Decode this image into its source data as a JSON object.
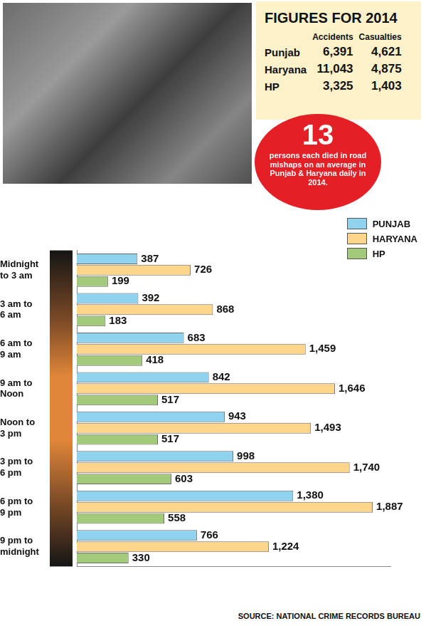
{
  "chart_data": {
    "type": "bar",
    "orientation": "horizontal",
    "categories": [
      "Midnight to 3 am",
      "3 am to 6 am",
      "6 am to 9 am",
      "9 am to Noon",
      "Noon to 3 pm",
      "3 pm to 6 pm",
      "6 pm to 9 pm",
      "9 pm to midnight"
    ],
    "series": [
      {
        "name": "PUNJAB",
        "color": "#8fd3ee",
        "values": [
          387,
          392,
          683,
          842,
          943,
          998,
          1380,
          766
        ],
        "value_labels": [
          "387",
          "392",
          "683",
          "842",
          "943",
          "998",
          "1,380",
          "766"
        ]
      },
      {
        "name": "HARYANA",
        "color": "#fdd58b",
        "values": [
          726,
          868,
          1459,
          1646,
          1493,
          1740,
          1887,
          1224
        ],
        "value_labels": [
          "726",
          "868",
          "1,459",
          "1,646",
          "1,493",
          "1,740",
          "1,887",
          "1,224"
        ]
      },
      {
        "name": "HP",
        "color": "#a3c97a",
        "values": [
          199,
          183,
          418,
          517,
          517,
          603,
          558,
          330
        ],
        "value_labels": [
          "199",
          "183",
          "418",
          "517",
          "517",
          "603",
          "558",
          "330"
        ]
      }
    ],
    "xlim": [
      0,
      2000
    ],
    "grid": false,
    "legend": "upper right",
    "data_labels": true,
    "tick_labels": "y"
  },
  "table": {
    "title": "FIGURES FOR 2014",
    "columns": [
      "Accidents",
      "Casualties"
    ],
    "rows": [
      [
        "Punjab",
        "6,391",
        "4,621"
      ],
      [
        "Haryana",
        "11,043",
        "4,875"
      ],
      [
        "HP",
        "3,325",
        "1,403"
      ]
    ]
  },
  "annotation": {
    "number": "13",
    "text": "persons each died in road mishaps on an average in Punjab & Haryana daily in 2014."
  },
  "source": "SOURCE: NATIONAL CRIME RECORDS BUREAU"
}
